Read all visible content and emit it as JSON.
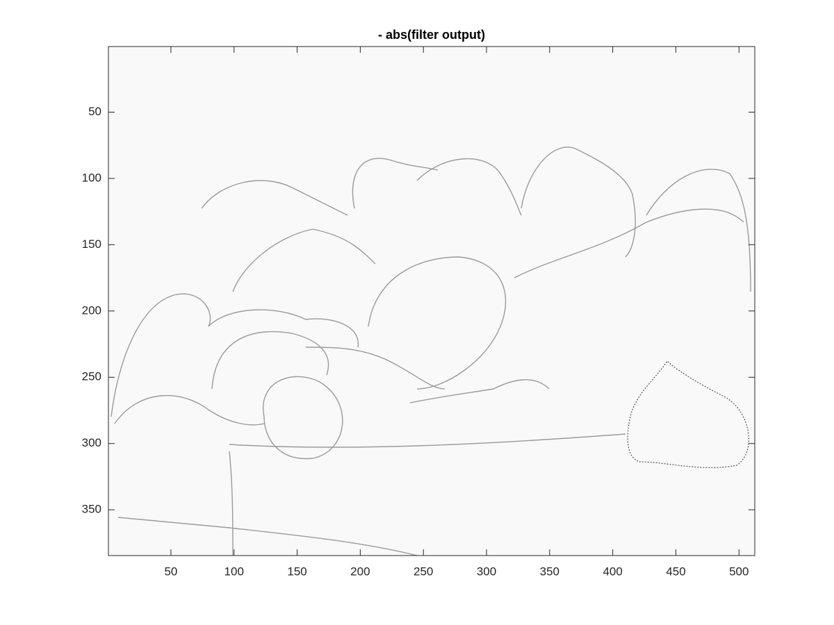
{
  "chart_data": {
    "type": "image",
    "title": "- abs(filter output)",
    "xlim": [
      0.5,
      512.5
    ],
    "ylim": [
      0.5,
      384.5
    ],
    "y_direction": "reverse",
    "xticks": [
      50,
      100,
      150,
      200,
      250,
      300,
      350,
      400,
      450,
      500
    ],
    "yticks": [
      50,
      100,
      150,
      200,
      250,
      300,
      350
    ]
  }
}
